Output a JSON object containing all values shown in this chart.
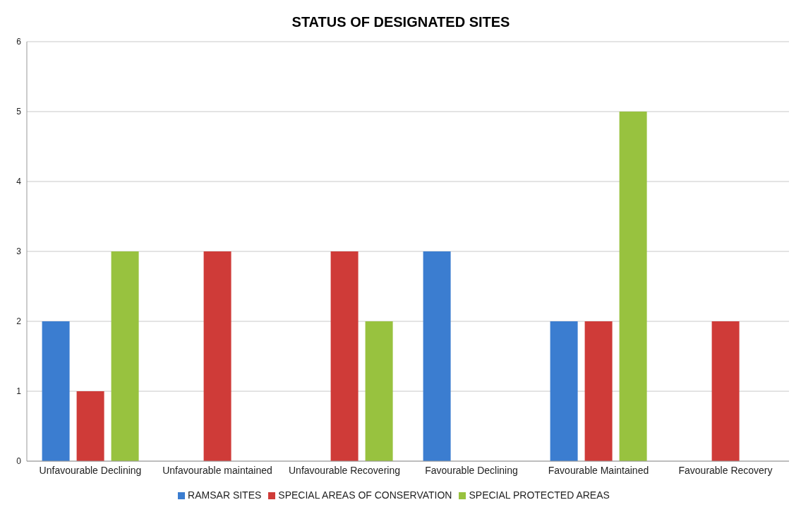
{
  "chart_data": {
    "type": "bar",
    "title": "STATUS OF DESIGNATED SITES",
    "categories": [
      "Unfavourable Declining",
      "Unfavourable maintained",
      "Unfavourable Recovering",
      "Favourable Declining",
      "Favourable Maintained",
      "Favourable Recovery"
    ],
    "series": [
      {
        "name": "RAMSAR SITES",
        "color": "#3b7dd0",
        "values": [
          2,
          0,
          0,
          3,
          2,
          0
        ]
      },
      {
        "name": "SPECIAL AREAS OF CONSERVATION",
        "color": "#cf3b38",
        "values": [
          1,
          3,
          3,
          0,
          2,
          2
        ]
      },
      {
        "name": "SPECIAL PROTECTED AREAS",
        "color": "#98c23f",
        "values": [
          3,
          0,
          2,
          0,
          5,
          0
        ]
      }
    ],
    "ylim": [
      0,
      6
    ],
    "yticks": [
      0,
      1,
      2,
      3,
      4,
      5,
      6
    ],
    "grid": "y",
    "legend": "bottom"
  }
}
